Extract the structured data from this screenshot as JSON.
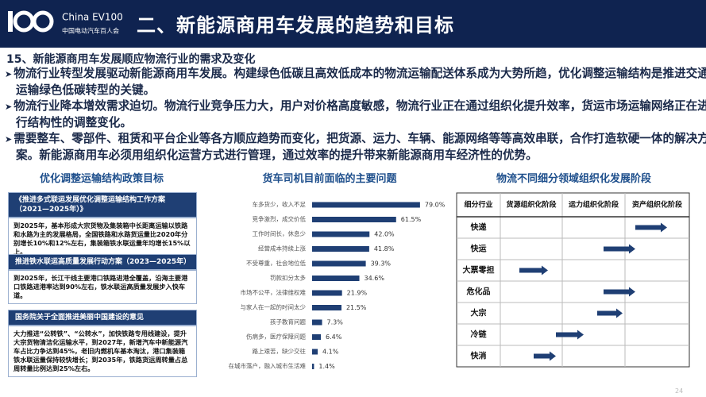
{
  "header": {
    "logo_text": "China EV100",
    "logo_subtitle": "中国电动汽车百人会",
    "title": "二、新能源商用车发展的趋势和目标"
  },
  "section_title": "15、新能源商用车发展顺应物流行业的需求及变化",
  "bullets": [
    "物流行业转型发展驱动新能源商用车发展。构建绿色低碳且高效低成本的物流运输配送体系成为大势所趋，优化调整运输结构是推进交通运输绿色低碳转型的关键。",
    "物流行业降本增效需求迫切。物流行业竞争压力大，用户对价格高度敏感，物流行业正在通过组织化提升效率，货运市场运输网络正在进行结构性的调整变化。",
    "需要整车、零部件、租赁和平台企业等各方顺应趋势而变化，把货源、运力、车辆、能源网络等等高效串联，合作打造软硬一体的解决方案。新能源商用车必须用组织化运营方式进行管理，通过效率的提升带来新能源商用车经济性的优势。"
  ],
  "policy": {
    "title": "优化调整运输结构政策目标",
    "items": [
      {
        "heading": "《推进多式联运发展优化调整运输结构工作方案（2021—2025年）》",
        "body": "到2025年，基本形成大宗货物及集装箱中长距离运输以铁路和水路为主的发展格局，全国铁路和水路货运量比2020年分别增长10%和12%左右，集装箱铁水联运量年均增长15%以上。"
      },
      {
        "heading": "推进铁水联运高质量发展行动方案（2023—2025年）",
        "body": "到2025年，长江干线主要港口铁路进港全覆盖，沿海主要港口铁路进港率达到90%左右，铁水联运高质量发展步入快车道。"
      },
      {
        "heading": "国务院关于全面推进美丽中国建设的意见",
        "body": "大力推进“公转铁”、“公转水”，加快铁路专用线建设，提升大宗货物清洁化运输水平，到2027年，新增汽车中新能源汽车占比力争达到45%，老旧内燃机车基本淘汰，港口集装箱铁水联运量保持较快增长；到2035年，铁路货运周转量占总周转量比例达到25%左右。"
      }
    ]
  },
  "chart_data": {
    "type": "bar",
    "orientation": "horizontal",
    "title": "货车司机目前面临的主要问题",
    "color": "#1f3f74",
    "categories": [
      "车多货少，收入不足",
      "竞争激烈，成交价低",
      "工作时间长，休息少",
      "经营成本持续上涨",
      "不受尊重，社会地位低",
      "罚款扣分太多",
      "市场不公平，法律维权难",
      "与家人在一起的时间太少",
      "孩子教育问题",
      "伤病多，医疗保障问题",
      "路上艰苦，缺少交往",
      "在城市落户，融入城市生活难"
    ],
    "values": [
      79.0,
      61.5,
      42.0,
      41.8,
      39.3,
      34.6,
      21.9,
      21.5,
      7.3,
      6.4,
      4.1,
      1.4
    ],
    "value_labels": [
      "79.0%",
      "61.5%",
      "42.0%",
      "41.8%",
      "39.3%",
      "34.6%",
      "21.9%",
      "21.5%",
      "7.3%",
      "6.4%",
      "4.1%",
      "1.4%"
    ]
  },
  "table": {
    "title": "物流不同细分领域组织化发展阶段",
    "headers": [
      "细分行业",
      "货源组织化阶段",
      "运力组织化阶段",
      "资产组织化阶段"
    ],
    "rows": [
      "快递",
      "快运",
      "大票零担",
      "危化品",
      "大宗",
      "冷链",
      "快消"
    ]
  },
  "page_number": "24"
}
